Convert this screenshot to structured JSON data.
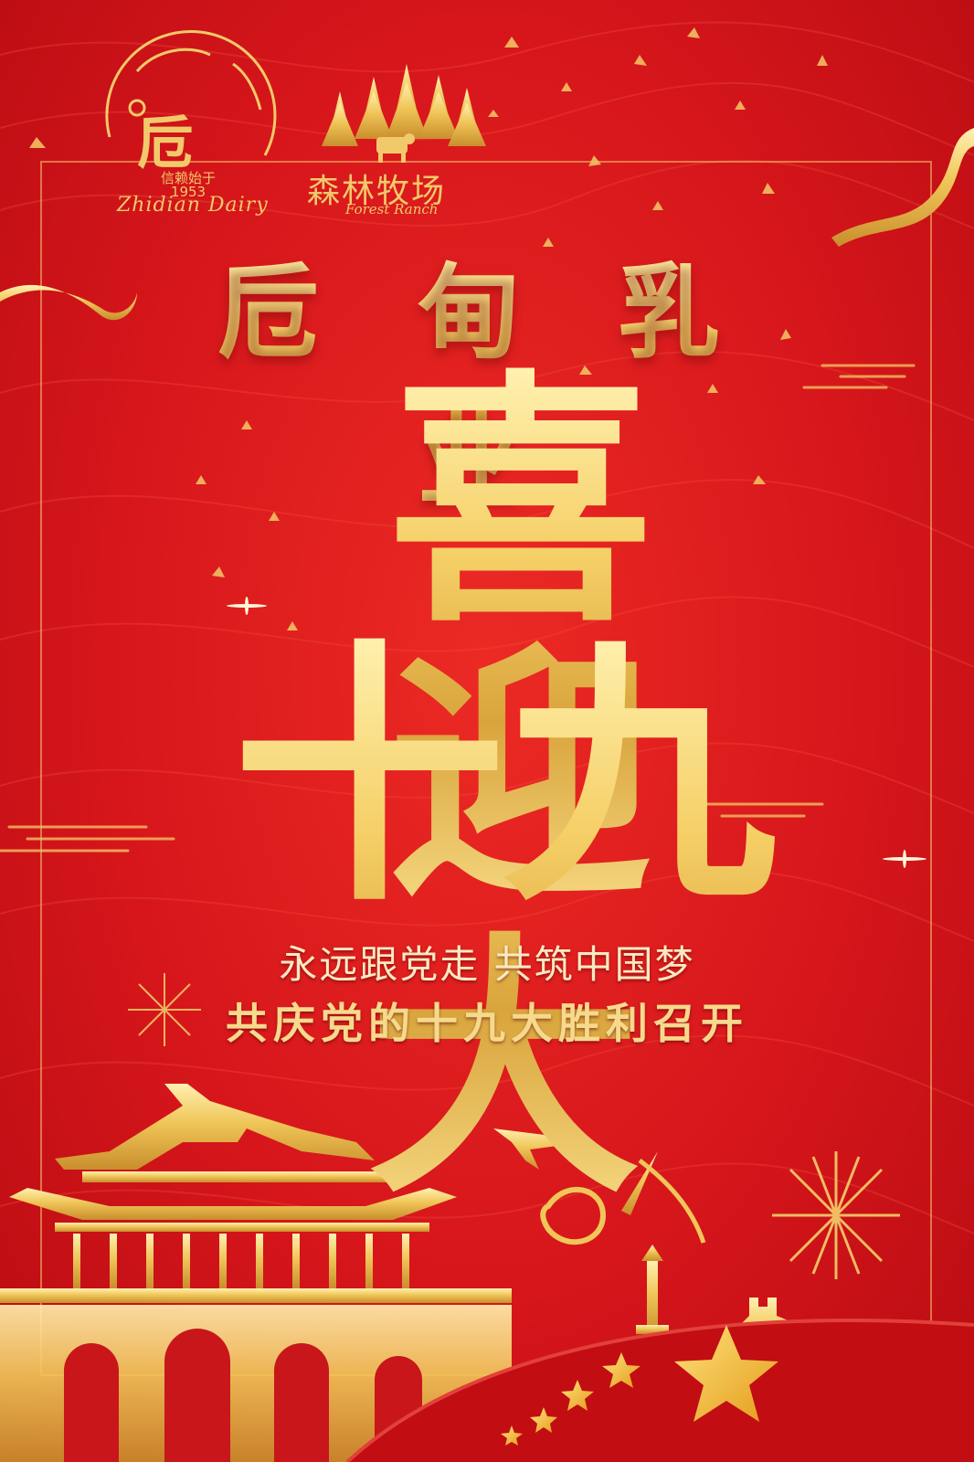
{
  "brand": {
    "zhidian_mark": "卮",
    "zhidian_slogan": "信赖始于",
    "zhidian_year": "1953",
    "zhidian_en": "Zhidian Dairy",
    "forest_cn": "森林牧场",
    "forest_en": "Forest Ranch"
  },
  "company_name": "卮 甸 乳 业",
  "hero": {
    "line1": "喜迎",
    "line2": "十九大"
  },
  "slogans": {
    "line1": "永远跟党走  共筑中国梦",
    "line2": "共庆党的十九大胜利召开"
  },
  "colors": {
    "background": "#d8141a",
    "gold": "#f3cf6d",
    "frame": "#f6c872"
  },
  "icons": [
    "tiananmen-gate-icon",
    "rocket-icon",
    "fireworks-icon",
    "star-icon",
    "ribbon-icon",
    "pine-tree-icon",
    "cow-icon",
    "great-wall-icon"
  ]
}
